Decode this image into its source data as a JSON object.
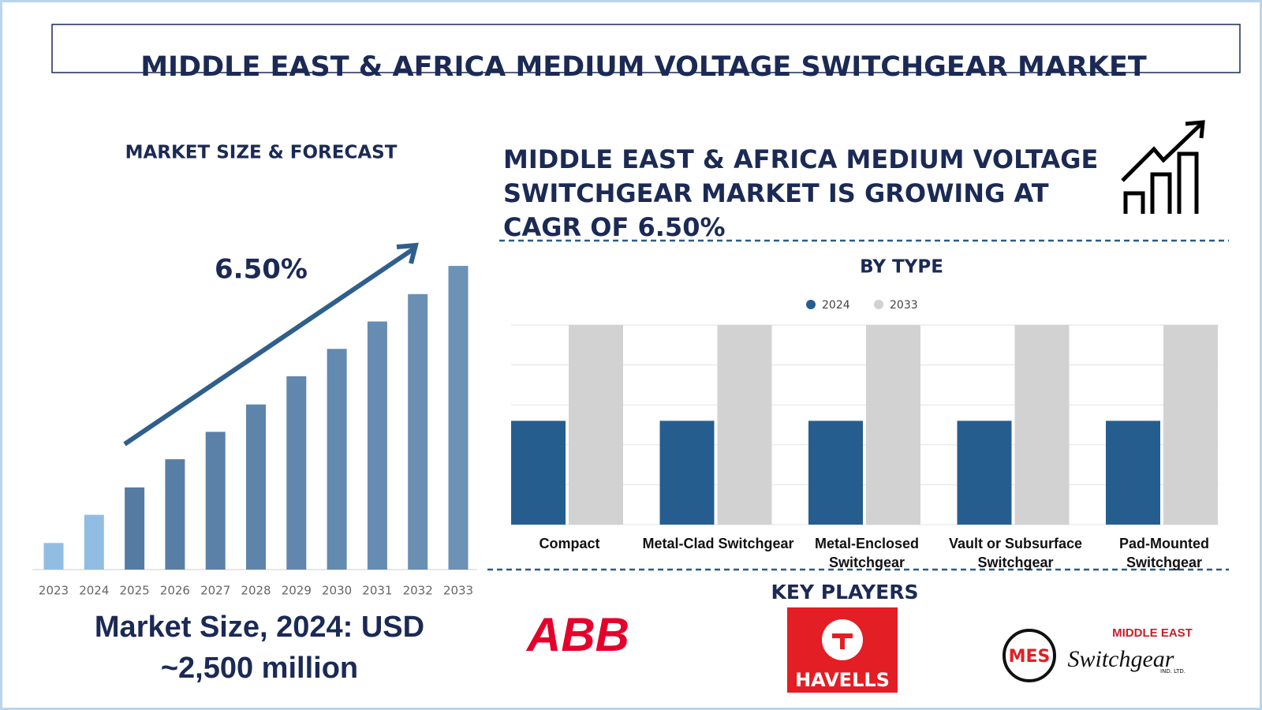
{
  "title": "MIDDLE EAST & AFRICA MEDIUM VOLTAGE SWITCHGEAR MARKET",
  "headline_lines": [
    "MIDDLE EAST & AFRICA MEDIUM VOLTAGE",
    "SWITCHGEAR MARKET IS GROWING AT",
    "CAGR OF 6.50%"
  ],
  "market_size": "Market Size, 2024: USD ~2,500 million",
  "key_players": {
    "title": "KEY PLAYERS",
    "abb": "ABB",
    "havells": "HAVELLS",
    "mes": {
      "mark": "MES",
      "line1": "MIDDLE EAST",
      "line2": "Switchgear",
      "line3": "IND. LTD."
    }
  },
  "chart_data": [
    {
      "type": "bar",
      "title": "MARKET SIZE & FORECAST",
      "annotation": "6.50%",
      "categories": [
        "2023",
        "2024",
        "2025",
        "2026",
        "2027",
        "2028",
        "2029",
        "2030",
        "2031",
        "2032",
        "2033"
      ],
      "values": [
        33,
        68,
        102,
        137,
        171,
        205,
        240,
        274,
        308,
        342,
        377
      ],
      "colors": [
        "#92bde3",
        "#92bde3",
        "#557ba3",
        "#587ea6",
        "#5b81a8",
        "#5e84ab",
        "#6187ad",
        "#638aaf",
        "#668cb1",
        "#698fb3",
        "#6c92b5"
      ],
      "ylim": [
        0,
        380
      ]
    },
    {
      "type": "grouped_bar",
      "title": "BY TYPE",
      "categories": [
        "Compact",
        "Metal-Clad Switchgear",
        "Metal-Enclosed Switchgear",
        "Vault or Subsurface Switchgear",
        "Pad-Mounted Switchgear"
      ],
      "series": [
        {
          "name": "2024",
          "color": "#255e8e",
          "values": [
            2.6,
            2.6,
            2.6,
            2.6,
            2.6
          ]
        },
        {
          "name": "2033",
          "color": "#d2d2d2",
          "values": [
            5,
            5,
            5,
            5,
            5
          ]
        }
      ],
      "ylim": [
        0,
        5
      ],
      "grid_lines": [
        0,
        1,
        2,
        3,
        4,
        5
      ]
    }
  ]
}
